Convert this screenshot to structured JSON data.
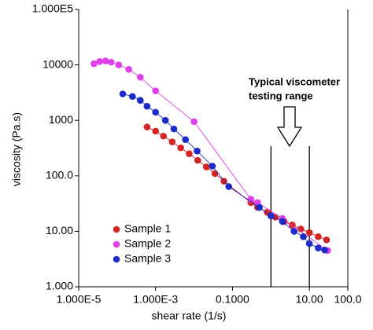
{
  "chart_data": {
    "type": "scatter",
    "xlabel": "shear rate (1/s)",
    "ylabel": "viscosity (Pa.s)",
    "xscale": "log",
    "yscale": "log",
    "xlim": [
      1e-05,
      100
    ],
    "ylim": [
      1,
      100000
    ],
    "xticks": [
      {
        "value": 1e-05,
        "label": "1.000E-5"
      },
      {
        "value": 0.001,
        "label": "1.000E-3"
      },
      {
        "value": 0.1,
        "label": "0.1000"
      },
      {
        "value": 10,
        "label": "10.00"
      },
      {
        "value": 100,
        "label": "100.0"
      }
    ],
    "yticks": [
      {
        "value": 1,
        "label": "1.000"
      },
      {
        "value": 10,
        "label": "10.00"
      },
      {
        "value": 100,
        "label": "100.0"
      },
      1000,
      10000,
      {
        "value": 100000,
        "label": "1.000E5"
      }
    ],
    "legend": "lower left",
    "annotation": [
      "Typical viscometer",
      "testing range"
    ],
    "range_lines": [
      1,
      10
    ],
    "series": [
      {
        "name": "Sample 1",
        "color": "#d42424",
        "x": [
          0.0006,
          0.001,
          0.0016,
          0.0027,
          0.0045,
          0.0075,
          0.0125,
          0.021,
          0.035,
          0.06,
          0.3,
          0.45,
          0.8,
          1.3,
          2.2,
          3.6,
          6,
          10,
          17,
          28
        ],
        "values": [
          760,
          640,
          520,
          410,
          320,
          250,
          190,
          145,
          110,
          80,
          33,
          27,
          22,
          18,
          15,
          13,
          11,
          9.5,
          8,
          7
        ]
      },
      {
        "name": "Sample 2",
        "color": "#e040e8",
        "x": [
          2.5e-05,
          3.5e-05,
          5e-05,
          7e-05,
          0.00011,
          0.0002,
          0.0004,
          0.001,
          0.01,
          0.3,
          0.45,
          2,
          30
        ],
        "values": [
          10500,
          11500,
          11800,
          11200,
          10000,
          8300,
          6000,
          3400,
          950,
          38,
          33,
          17,
          4.5
        ]
      },
      {
        "name": "Sample 3",
        "color": "#1a2bc8",
        "x": [
          0.00014,
          0.00025,
          0.0004,
          0.0006,
          0.001,
          0.0018,
          0.003,
          0.006,
          0.012,
          0.03,
          0.08,
          0.5,
          1,
          2,
          4,
          7,
          10,
          17,
          25
        ],
        "values": [
          3000,
          2700,
          2300,
          1800,
          1400,
          1000,
          700,
          450,
          280,
          150,
          64,
          27,
          19,
          15,
          10,
          8,
          6,
          5,
          4.6
        ]
      }
    ]
  }
}
